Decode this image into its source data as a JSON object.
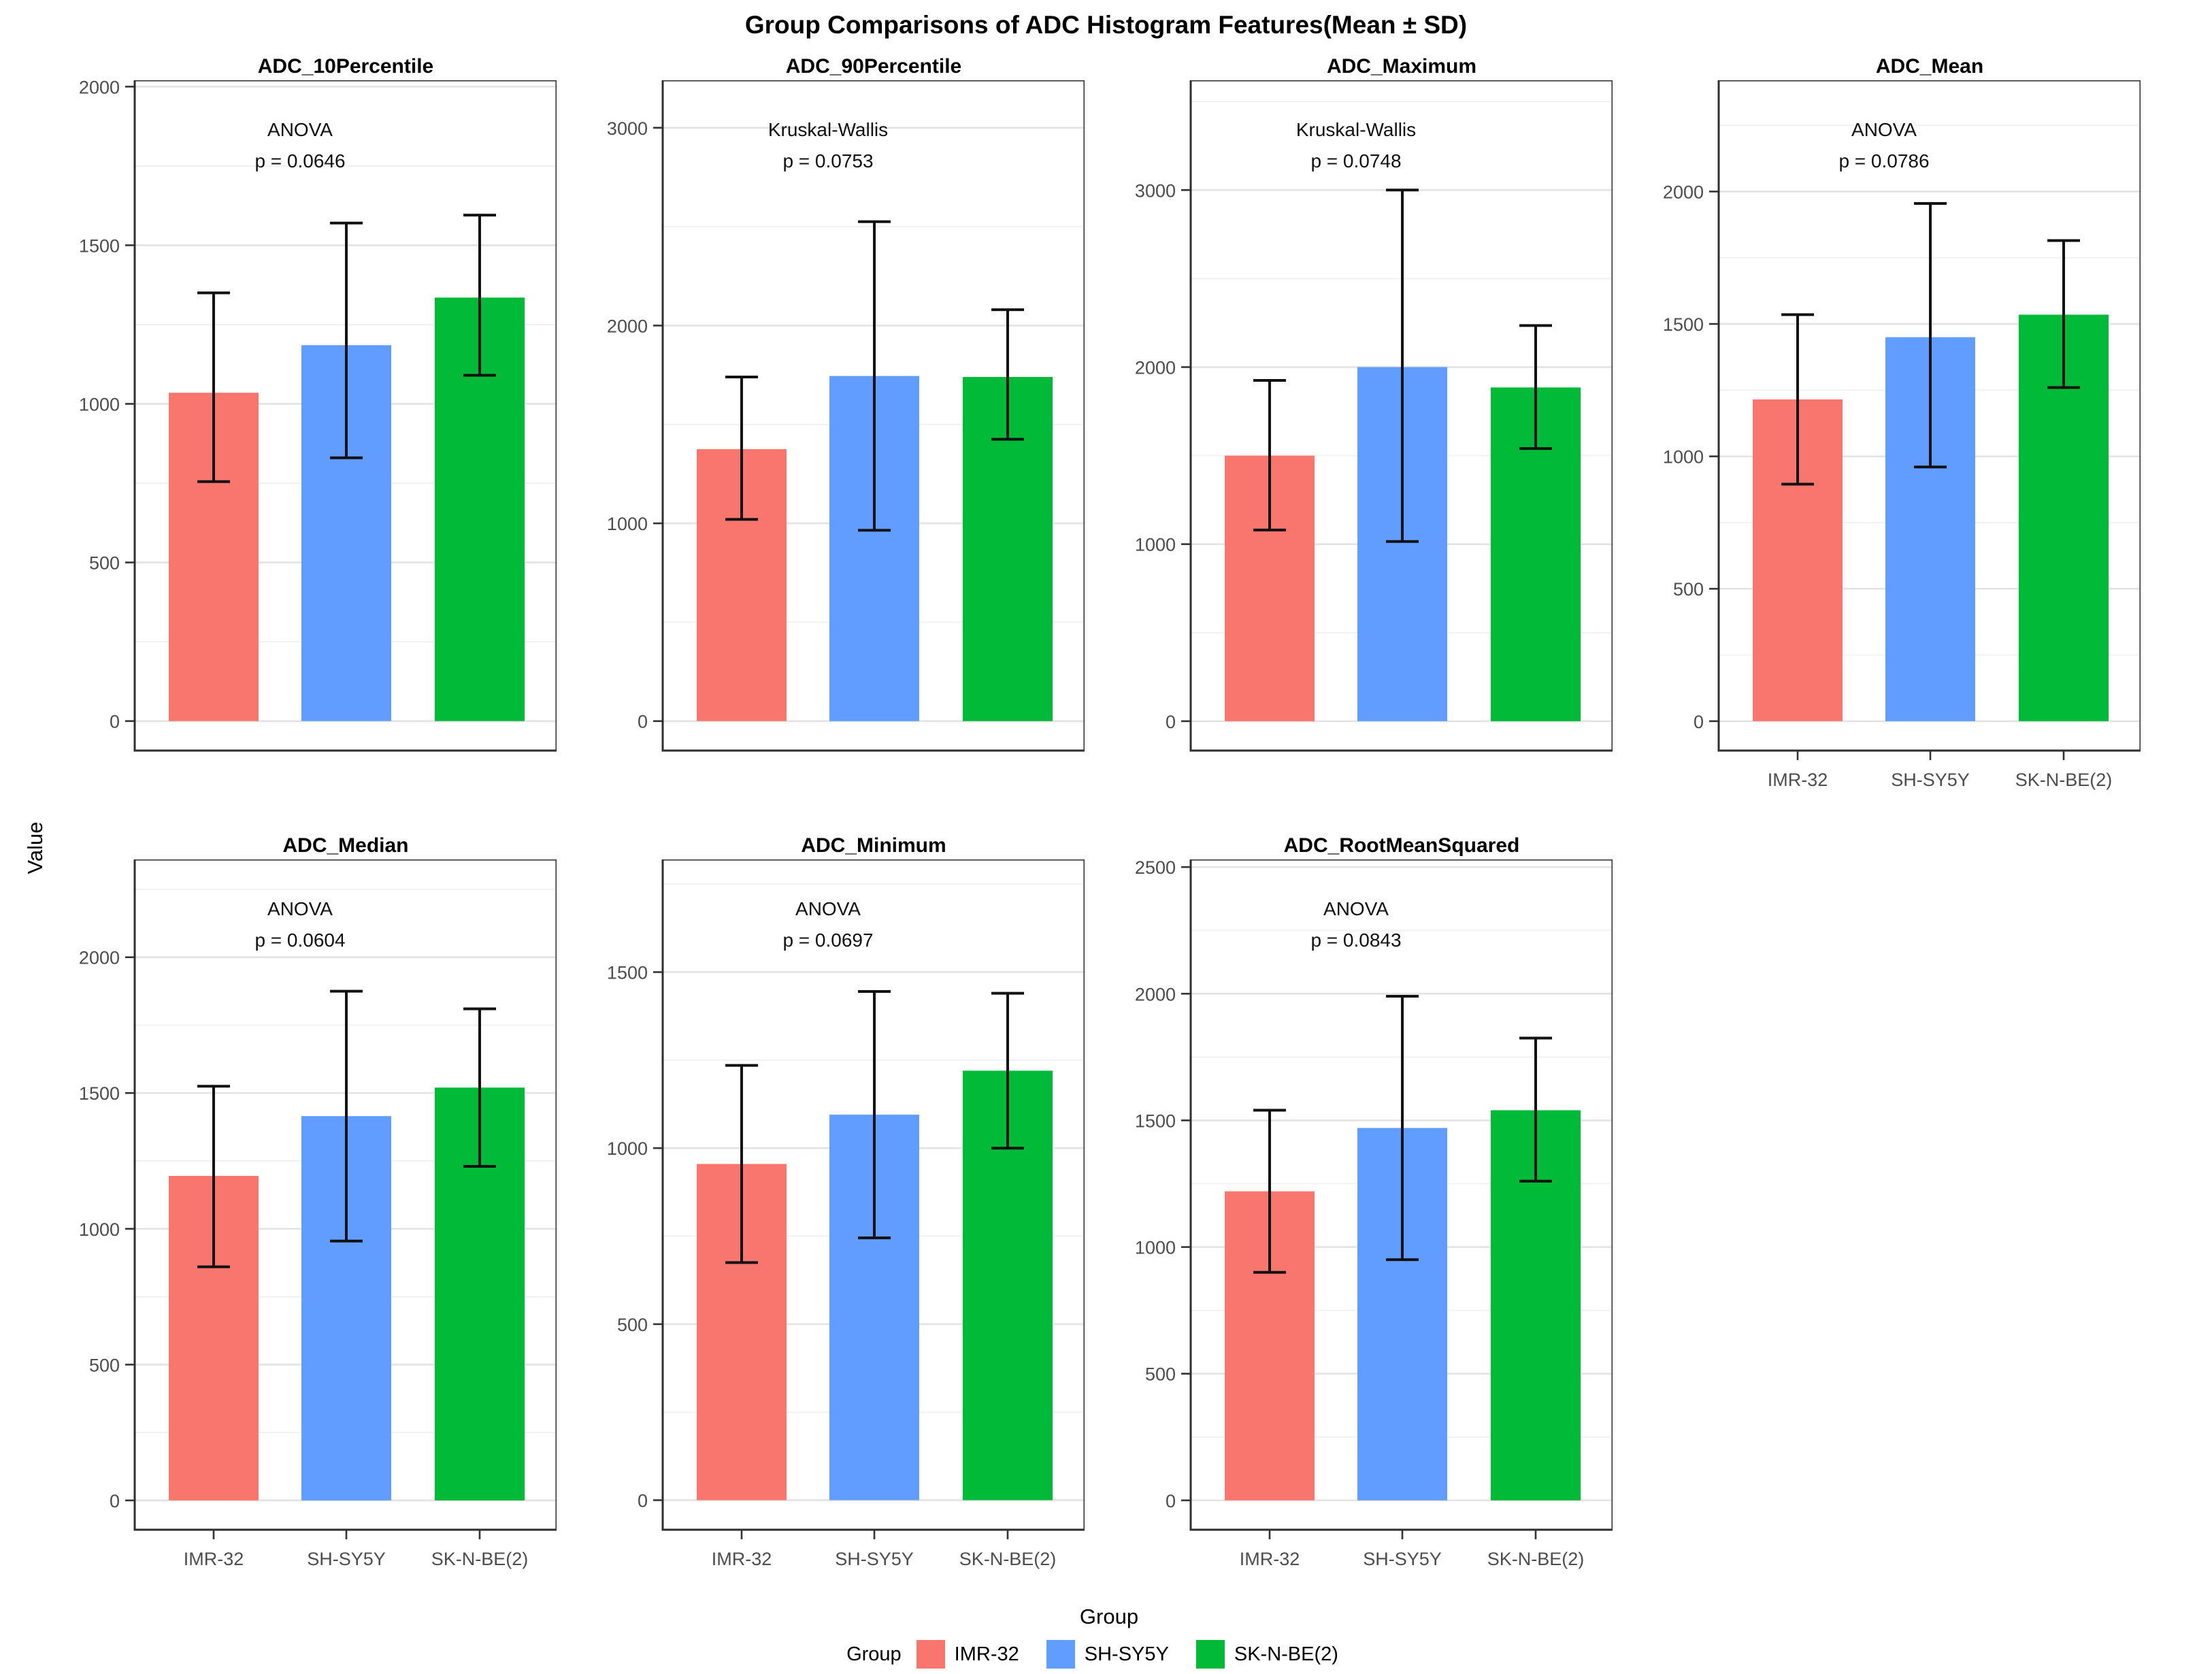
{
  "chart_data": {
    "type": "bar",
    "title": "Group Comparisons of ADC Histogram Features(Mean ± SD)",
    "xlabel": "Group",
    "ylabel": "Value",
    "error_bars": "mean ± SD",
    "categories": [
      "IMR-32",
      "SH-SY5Y",
      "SK-N-BE(2)"
    ],
    "group_colors": [
      "#F8766D",
      "#619CFF",
      "#00BA38"
    ],
    "legend": {
      "title": "Group",
      "entries": [
        {
          "label": "IMR-32",
          "color": "#F8766D"
        },
        {
          "label": "SH-SY5Y",
          "color": "#619CFF"
        },
        {
          "label": "SK-N-BE(2)",
          "color": "#00BA38"
        }
      ]
    },
    "panels": [
      {
        "title": "ADC_10Percentile",
        "stat_test": "ANOVA",
        "p_text": "p = 0.0646",
        "yticks": [
          0,
          500,
          1000,
          1500,
          2000
        ],
        "minor_step": 250,
        "ymax": 2020,
        "ymin": -93,
        "show_x_labels": false,
        "series": [
          {
            "name": "IMR-32",
            "mean": 1035,
            "sd_low": 755,
            "sd_high": 1350
          },
          {
            "name": "SH-SY5Y",
            "mean": 1185,
            "sd_low": 830,
            "sd_high": 1570
          },
          {
            "name": "SK-N-BE(2)",
            "mean": 1335,
            "sd_low": 1090,
            "sd_high": 1595
          }
        ]
      },
      {
        "title": "ADC_90Percentile",
        "stat_test": "Kruskal-Wallis",
        "p_text": "p = 0.0753",
        "yticks": [
          0,
          1000,
          2000,
          3000
        ],
        "minor_step": 500,
        "ymax": 3240,
        "ymin": -149,
        "show_x_labels": false,
        "series": [
          {
            "name": "IMR-32",
            "mean": 1375,
            "sd_low": 1020,
            "sd_high": 1740
          },
          {
            "name": "SH-SY5Y",
            "mean": 1745,
            "sd_low": 965,
            "sd_high": 2525
          },
          {
            "name": "SK-N-BE(2)",
            "mean": 1740,
            "sd_low": 1425,
            "sd_high": 2080
          }
        ]
      },
      {
        "title": "ADC_Maximum",
        "stat_test": "Kruskal-Wallis",
        "p_text": "p = 0.0748",
        "yticks": [
          0,
          1000,
          2000,
          3000
        ],
        "minor_step": 500,
        "ymax": 3620,
        "ymin": -166,
        "show_x_labels": false,
        "series": [
          {
            "name": "IMR-32",
            "mean": 1500,
            "sd_low": 1080,
            "sd_high": 1925
          },
          {
            "name": "SH-SY5Y",
            "mean": 2000,
            "sd_low": 1015,
            "sd_high": 3000
          },
          {
            "name": "SK-N-BE(2)",
            "mean": 1885,
            "sd_low": 1540,
            "sd_high": 2235
          }
        ]
      },
      {
        "title": "ADC_Mean",
        "stat_test": "ANOVA",
        "p_text": "p = 0.0786",
        "yticks": [
          0,
          500,
          1000,
          1500,
          2000
        ],
        "minor_step": 250,
        "ymax": 2420,
        "ymin": -111,
        "show_x_labels": true,
        "series": [
          {
            "name": "IMR-32",
            "mean": 1215,
            "sd_low": 895,
            "sd_high": 1535
          },
          {
            "name": "SH-SY5Y",
            "mean": 1450,
            "sd_low": 960,
            "sd_high": 1955
          },
          {
            "name": "SK-N-BE(2)",
            "mean": 1535,
            "sd_low": 1260,
            "sd_high": 1815
          }
        ]
      },
      {
        "title": "ADC_Median",
        "stat_test": "ANOVA",
        "p_text": "p = 0.0604",
        "yticks": [
          0,
          500,
          1000,
          1500,
          2000
        ],
        "minor_step": 250,
        "ymax": 2360,
        "ymin": -108,
        "show_x_labels": true,
        "series": [
          {
            "name": "IMR-32",
            "mean": 1195,
            "sd_low": 860,
            "sd_high": 1525
          },
          {
            "name": "SH-SY5Y",
            "mean": 1415,
            "sd_low": 955,
            "sd_high": 1875
          },
          {
            "name": "SK-N-BE(2)",
            "mean": 1520,
            "sd_low": 1230,
            "sd_high": 1810
          }
        ]
      },
      {
        "title": "ADC_Minimum",
        "stat_test": "ANOVA",
        "p_text": "p = 0.0697",
        "yticks": [
          0,
          500,
          1000,
          1500
        ],
        "minor_step": 250,
        "ymax": 1820,
        "ymin": -84,
        "show_x_labels": true,
        "series": [
          {
            "name": "IMR-32",
            "mean": 955,
            "sd_low": 675,
            "sd_high": 1235
          },
          {
            "name": "SH-SY5Y",
            "mean": 1095,
            "sd_low": 745,
            "sd_high": 1445
          },
          {
            "name": "SK-N-BE(2)",
            "mean": 1220,
            "sd_low": 1000,
            "sd_high": 1440
          }
        ]
      },
      {
        "title": "ADC_RootMeanSquared",
        "stat_test": "ANOVA",
        "p_text": "p = 0.0843",
        "yticks": [
          0,
          500,
          1000,
          1500,
          2000,
          2500
        ],
        "minor_step": 250,
        "ymax": 2530,
        "ymin": -116,
        "show_x_labels": true,
        "series": [
          {
            "name": "IMR-32",
            "mean": 1220,
            "sd_low": 900,
            "sd_high": 1540
          },
          {
            "name": "SH-SY5Y",
            "mean": 1470,
            "sd_low": 950,
            "sd_high": 1990
          },
          {
            "name": "SK-N-BE(2)",
            "mean": 1540,
            "sd_low": 1260,
            "sd_high": 1825
          }
        ]
      }
    ]
  }
}
